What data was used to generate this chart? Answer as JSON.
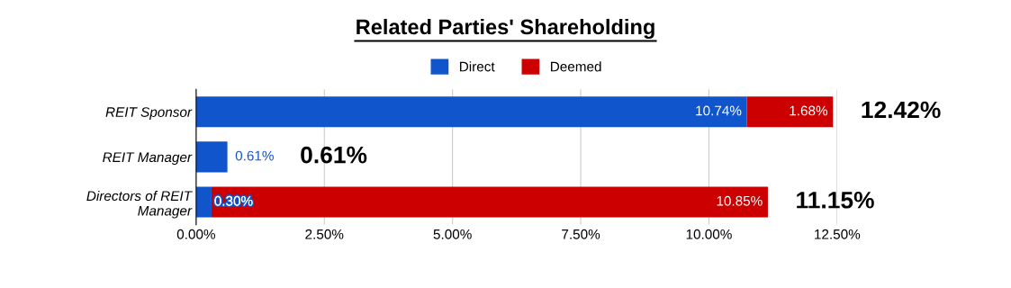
{
  "chart_data": {
    "type": "bar",
    "title": "Related Parties' Shareholding",
    "orientation": "horizontal",
    "stacked": true,
    "categories": [
      "REIT Sponsor",
      "REIT Manager",
      "Directors of REIT\nManager"
    ],
    "series": [
      {
        "name": "Direct",
        "color": "#1155cc",
        "values": [
          10.74,
          0.61,
          0.3
        ],
        "value_labels": [
          "10.74%",
          "0.61%",
          "0.30%"
        ]
      },
      {
        "name": "Deemed",
        "color": "#cc0000",
        "values": [
          1.68,
          0,
          10.85
        ],
        "value_labels": [
          "1.68%",
          null,
          "10.85%"
        ]
      }
    ],
    "totals": [
      "12.42%",
      "0.61%",
      "11.15%"
    ],
    "xlim": [
      0,
      12.5
    ],
    "xticks": [
      {
        "value": 0,
        "label": "0.00%"
      },
      {
        "value": 2.5,
        "label": "2.50%"
      },
      {
        "value": 5,
        "label": "5.00%"
      },
      {
        "value": 7.5,
        "label": "7.50%"
      },
      {
        "value": 10,
        "label": "10.00%"
      },
      {
        "value": 12.5,
        "label": "12.50%"
      }
    ],
    "grid": "x",
    "legend": "top"
  }
}
